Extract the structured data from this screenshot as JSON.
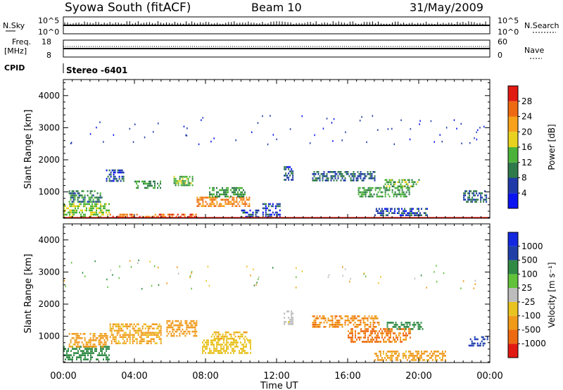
{
  "header": {
    "station": "Syowa South (fitACF)",
    "beam": "Beam 10",
    "date": "31/May/2009"
  },
  "top_panels": {
    "nsky_label": "N.Sky",
    "nsky_ticks": [
      "10^5",
      "10^0"
    ],
    "nsearch_label": "N.Search",
    "nsearch_ticks": [
      "10^5",
      "10^0"
    ],
    "freq_label_1": "Freq.",
    "freq_label_2": "[MHz]",
    "freq_ticks": [
      "18",
      "8"
    ],
    "nave_label": "Nave",
    "nave_ticks": [
      "60",
      "0"
    ],
    "cpid_label": "CPID",
    "cpid_value": "Stereo -6401"
  },
  "axes": {
    "xlabel": "Time UT",
    "xticks": [
      "00:00",
      "04:00",
      "08:00",
      "12:00",
      "16:00",
      "20:00",
      "00:00"
    ],
    "ylabel": "Slant Range [km]",
    "yticks": [
      "1000",
      "2000",
      "3000",
      "4000"
    ]
  },
  "colors": {
    "power": [
      "#0a14f0",
      "#1e3aa8",
      "#2f7a4a",
      "#4cb33a",
      "#e8d21f",
      "#f7a21a",
      "#ee6a12",
      "#e11a12"
    ],
    "velocity": [
      "#e11a12",
      "#ee6a12",
      "#f09a1a",
      "#e8c21f",
      "#bcbcbc",
      "#62c23a",
      "#2f8a44",
      "#2040a8",
      "#1428e0"
    ]
  },
  "chart_data": [
    {
      "type": "heatmap",
      "title": "",
      "xlabel": "Time UT",
      "ylabel": "Slant Range [km]",
      "xlim": [
        0,
        24
      ],
      "ylim": [
        180,
        4500
      ],
      "colorbar_label": "Power [dB]",
      "colorbar_ticks": [
        "4",
        "8",
        "12",
        "16",
        "20",
        "24",
        "28"
      ],
      "regions": [
        {
          "t0": 0.0,
          "t1": 2.6,
          "r0": 250,
          "r1": 650,
          "level": 16
        },
        {
          "t0": 2.6,
          "t1": 7.5,
          "r0": 200,
          "r1": 320,
          "level": 26
        },
        {
          "t0": 0.3,
          "t1": 2.2,
          "r0": 700,
          "r1": 1050,
          "level": 10
        },
        {
          "t0": 2.4,
          "t1": 3.4,
          "r0": 1350,
          "r1": 1700,
          "level": 6
        },
        {
          "t0": 4.0,
          "t1": 5.5,
          "r0": 1100,
          "r1": 1350,
          "level": 12
        },
        {
          "t0": 6.2,
          "t1": 7.3,
          "r0": 1200,
          "r1": 1500,
          "level": 14
        },
        {
          "t0": 7.5,
          "t1": 10.5,
          "r0": 550,
          "r1": 850,
          "level": 24
        },
        {
          "t0": 8.2,
          "t1": 10.2,
          "r0": 850,
          "r1": 1150,
          "level": 12
        },
        {
          "t0": 10.0,
          "t1": 11.0,
          "r0": 250,
          "r1": 450,
          "level": 6
        },
        {
          "t0": 11.2,
          "t1": 12.2,
          "r0": 250,
          "r1": 650,
          "level": 6
        },
        {
          "t0": 12.4,
          "t1": 12.9,
          "r0": 1400,
          "r1": 1800,
          "level": 6
        },
        {
          "t0": 14.0,
          "t1": 17.5,
          "r0": 1350,
          "r1": 1650,
          "level": 8
        },
        {
          "t0": 16.5,
          "t1": 19.5,
          "r0": 850,
          "r1": 1150,
          "level": 12
        },
        {
          "t0": 18.0,
          "t1": 20.0,
          "r0": 1200,
          "r1": 1400,
          "level": 14
        },
        {
          "t0": 17.5,
          "t1": 20.5,
          "r0": 300,
          "r1": 500,
          "level": 6
        },
        {
          "t0": 22.5,
          "t1": 23.8,
          "r0": 700,
          "r1": 1050,
          "level": 8
        }
      ]
    },
    {
      "type": "heatmap",
      "title": "",
      "xlabel": "Time UT",
      "ylabel": "Slant Range [km]",
      "xlim": [
        0,
        24
      ],
      "ylim": [
        180,
        4500
      ],
      "colorbar_label": "Velocity [m s⁻¹]",
      "colorbar_ticks": [
        "1000",
        "500",
        "100",
        "25",
        "-25",
        "-100",
        "-500",
        "-1000"
      ],
      "regions": [
        {
          "t0": 0.0,
          "t1": 2.6,
          "r0": 300,
          "r1": 700,
          "level": 300
        },
        {
          "t0": 0.3,
          "t1": 2.5,
          "r0": 700,
          "r1": 1100,
          "level": -150
        },
        {
          "t0": 2.6,
          "t1": 5.5,
          "r0": 800,
          "r1": 1400,
          "level": -120
        },
        {
          "t0": 5.8,
          "t1": 7.5,
          "r0": 1000,
          "r1": 1500,
          "level": -200
        },
        {
          "t0": 7.8,
          "t1": 10.5,
          "r0": 450,
          "r1": 900,
          "level": -60
        },
        {
          "t0": 8.3,
          "t1": 10.3,
          "r0": 900,
          "r1": 1150,
          "level": -80
        },
        {
          "t0": 12.4,
          "t1": 12.9,
          "r0": 1400,
          "r1": 1800,
          "level": 0
        },
        {
          "t0": 14.0,
          "t1": 17.8,
          "r0": 1300,
          "r1": 1650,
          "level": -400
        },
        {
          "t0": 16.0,
          "t1": 19.5,
          "r0": 850,
          "r1": 1250,
          "level": -600
        },
        {
          "t0": 18.2,
          "t1": 20.2,
          "r0": 1200,
          "r1": 1450,
          "level": 200
        },
        {
          "t0": 17.5,
          "t1": 21.5,
          "r0": 280,
          "r1": 550,
          "level": -150
        },
        {
          "t0": 22.8,
          "t1": 23.9,
          "r0": 700,
          "r1": 1000,
          "level": 800
        }
      ]
    }
  ]
}
